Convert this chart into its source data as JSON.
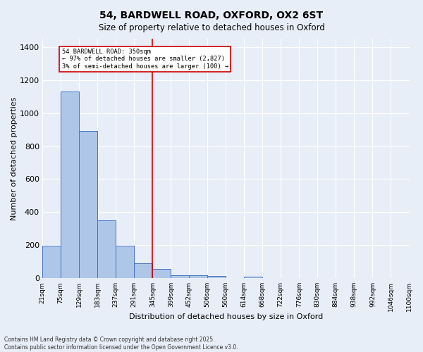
{
  "title": "54, BARDWELL ROAD, OXFORD, OX2 6ST",
  "subtitle": "Size of property relative to detached houses in Oxford",
  "xlabel": "Distribution of detached houses by size in Oxford",
  "ylabel": "Number of detached properties",
  "bar_values": [
    196,
    1130,
    890,
    350,
    196,
    90,
    55,
    20,
    18,
    13,
    0,
    10,
    0,
    0,
    0,
    0,
    0,
    0,
    0,
    0
  ],
  "bar_edges": [
    21,
    75,
    129,
    183,
    237,
    291,
    345,
    399,
    452,
    506,
    560,
    614,
    668,
    722,
    776,
    830,
    884,
    938,
    992,
    1046,
    1100
  ],
  "tick_labels": [
    "21sqm",
    "75sqm",
    "129sqm",
    "183sqm",
    "237sqm",
    "291sqm",
    "345sqm",
    "399sqm",
    "452sqm",
    "506sqm",
    "560sqm",
    "614sqm",
    "668sqm",
    "722sqm",
    "776sqm",
    "830sqm",
    "884sqm",
    "938sqm",
    "992sqm",
    "1046sqm",
    "1100sqm"
  ],
  "bar_color": "#aec6e8",
  "bar_edge_color": "#4472c4",
  "bg_color": "#e8eef7",
  "grid_color": "#ffffff",
  "vline_x": 345,
  "vline_color": "#cc0000",
  "annotation_text": "54 BARDWELL ROAD: 350sqm\n← 97% of detached houses are smaller (2,827)\n3% of semi-detached houses are larger (100) →",
  "annotation_box_color": "#ffffff",
  "annotation_box_edge": "#cc0000",
  "ylim": [
    0,
    1450
  ],
  "yticks": [
    0,
    200,
    400,
    600,
    800,
    1000,
    1200,
    1400
  ],
  "footer_line1": "Contains HM Land Registry data © Crown copyright and database right 2025.",
  "footer_line2": "Contains public sector information licensed under the Open Government Licence v3.0."
}
